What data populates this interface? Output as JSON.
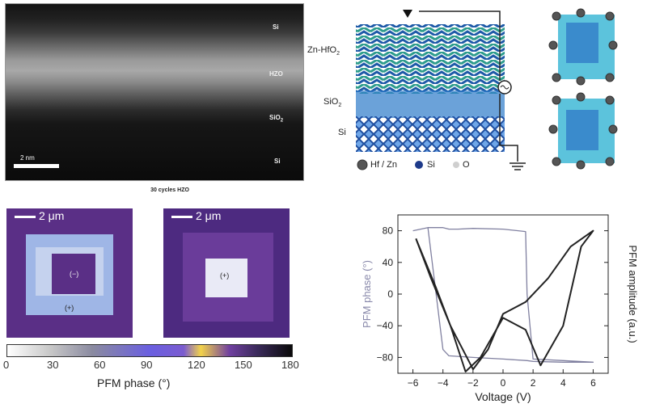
{
  "tem": {
    "layer_si_top": "Si",
    "layer_hzo": "HZO",
    "layer_sio2": "SiO",
    "layer_si": "Si",
    "scale": "2 nm",
    "caption": "30 cycles HZO"
  },
  "schematic": {
    "label_zn_hfo2": "Zn-HfO",
    "label_sio2": "SiO",
    "label_si": "Si",
    "legend_hf_zn": "Hf / Zn",
    "legend_si": "Si",
    "legend_o": "O"
  },
  "pfm": {
    "scale_left": "2 μm",
    "scale_right": "2 μm",
    "sign_left": "(+)",
    "sign_left_inner": "(−)",
    "sign_right": "(+)"
  },
  "colorbar": {
    "ticks": [
      "0",
      "30",
      "60",
      "90",
      "120",
      "150",
      "180"
    ],
    "label": "PFM phase (°)"
  },
  "chart_data": {
    "type": "line",
    "xlabel": "Voltage (V)",
    "ylabel_left": "PFM phase (°)",
    "ylabel_right": "PFM amplitude (a.u.)",
    "xlim": [
      -7,
      7
    ],
    "ylim": [
      -100,
      100
    ],
    "x_ticks": [
      "−6",
      "−4",
      "−2",
      "0",
      "2",
      "4",
      "6"
    ],
    "y_ticks": [
      "80",
      "40",
      "0",
      "−40",
      "−80"
    ],
    "series": [
      {
        "role": "phase",
        "color": "#8080a0",
        "x": [
          -6,
          -5,
          -4,
          -3.6,
          -3,
          -2,
          0,
          1.5,
          1.6,
          2,
          4,
          6,
          4,
          2,
          1.6,
          0,
          -2,
          -3.6,
          -4,
          -5,
          -6
        ],
        "y": [
          80,
          84,
          84,
          82,
          82,
          83,
          82,
          79,
          0,
          -82,
          -84,
          -86,
          -86,
          -85,
          -84,
          -82,
          -80,
          -78,
          -70,
          84,
          80
        ]
      },
      {
        "role": "amplitude",
        "color": "#222222",
        "x": [
          -5.8,
          -4.5,
          -3.5,
          -2.5,
          -1.5,
          0,
          1.5,
          2.5,
          4,
          5.2,
          6,
          4.5,
          3,
          1.5,
          0,
          -1,
          -2,
          -3.5,
          -4.8,
          -5.8
        ],
        "y": [
          70,
          10,
          -40,
          -98,
          -80,
          -30,
          -45,
          -90,
          -40,
          60,
          80,
          60,
          20,
          -10,
          -25,
          -70,
          -95,
          -40,
          20,
          70
        ]
      }
    ]
  }
}
